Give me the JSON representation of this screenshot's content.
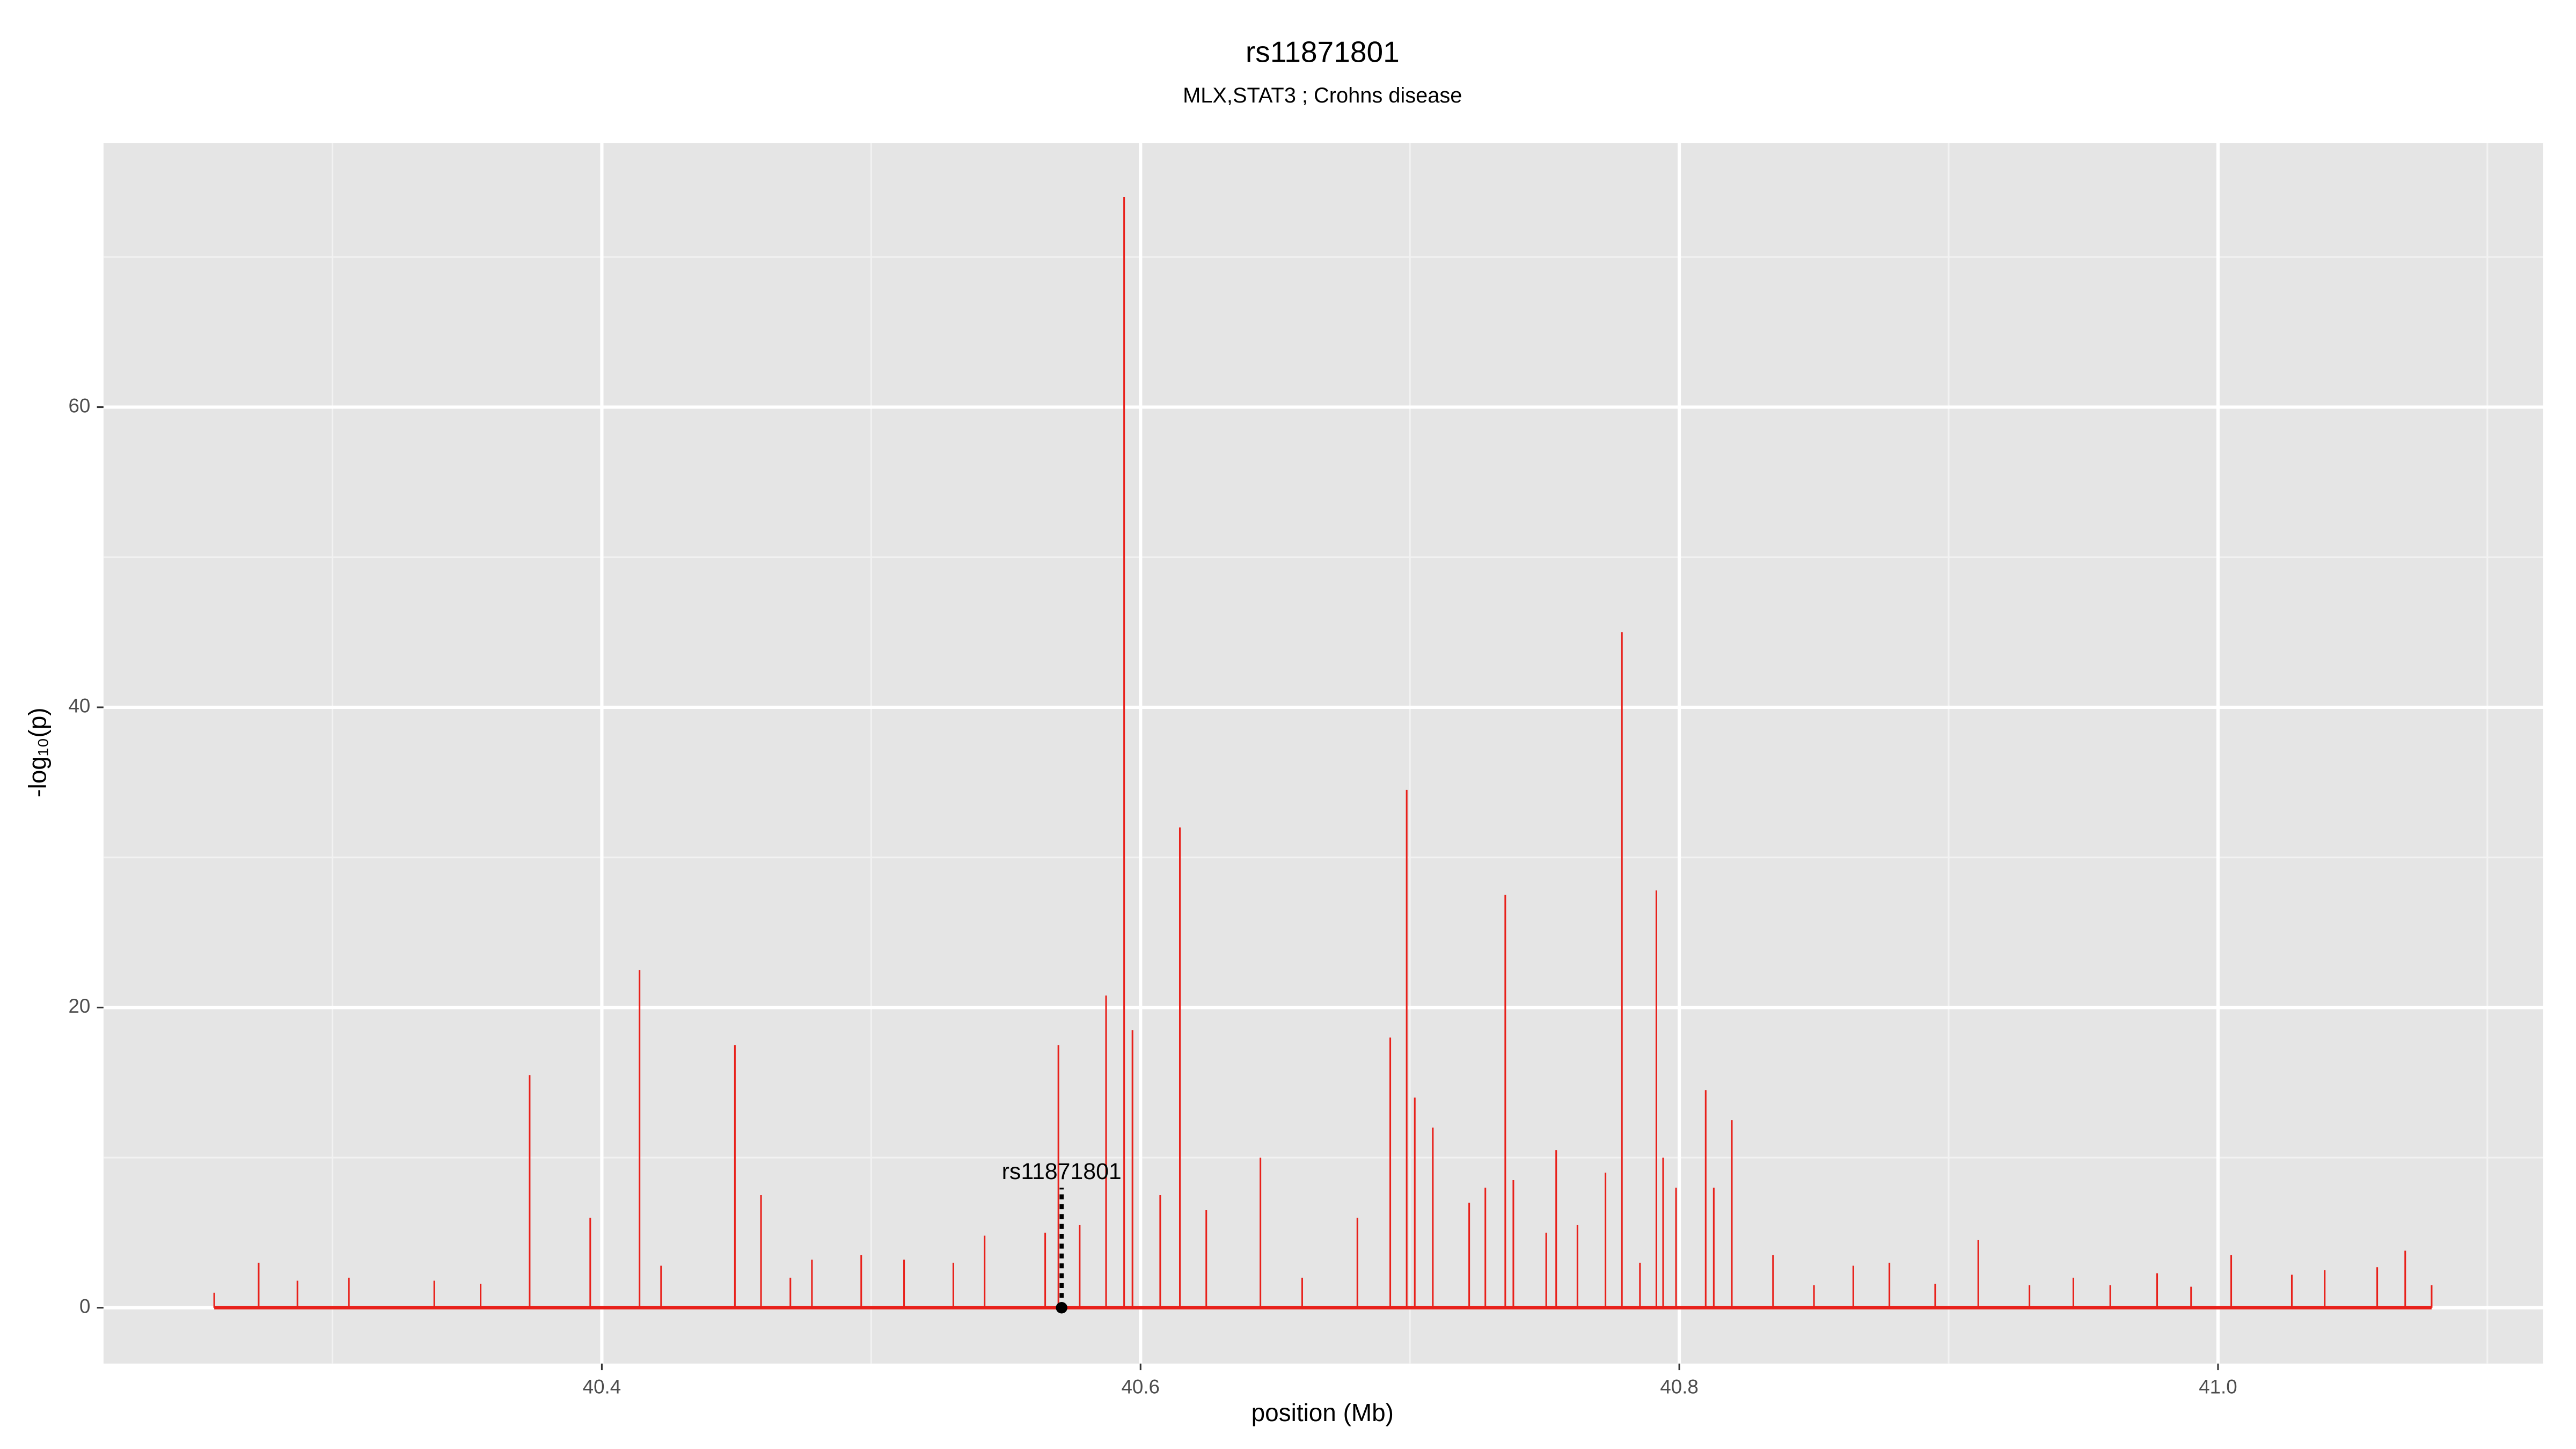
{
  "chart_data": {
    "type": "spike",
    "title": "rs11871801",
    "subtitle": "MLX,STAT3 ; Crohns disease",
    "x_label": "position (Mb)",
    "y_label": "-log₁₀(p)",
    "color": "#e8201a",
    "grid": true,
    "xlim": [
      40.215,
      41.1207
    ],
    "ylim": [
      -3.72,
      77.6
    ],
    "xticks": [
      40.4,
      40.6,
      40.8,
      {
        "value": 41,
        "label": "41.0"
      }
    ],
    "yticks": [
      0,
      20,
      40,
      60
    ],
    "x": [
      40.2561,
      40.2726,
      40.287,
      40.3061,
      40.3378,
      40.355,
      40.3732,
      40.3957,
      40.414,
      40.422,
      40.4494,
      40.4591,
      40.47,
      40.478,
      40.4963,
      40.5122,
      40.5305,
      40.5421,
      40.5646,
      40.5695,
      40.5774,
      40.5872,
      40.5939,
      40.597,
      40.6073,
      40.6146,
      40.6244,
      40.6445,
      40.66,
      40.6805,
      40.6927,
      40.6988,
      40.7018,
      40.7085,
      40.722,
      40.728,
      40.7354,
      40.7384,
      40.7506,
      40.7543,
      40.7622,
      40.7726,
      40.7787,
      40.7854,
      40.7915,
      40.794,
      40.7988,
      40.8098,
      40.8128,
      40.8195,
      40.8348,
      40.85,
      40.8646,
      40.878,
      40.895,
      40.911,
      40.93,
      40.9463,
      40.96,
      40.9774,
      40.99,
      41.0049,
      41.0274,
      41.0396,
      41.0591,
      41.0695,
      41.0793
    ],
    "values": [
      1,
      3,
      1.8,
      2,
      1.8,
      1.6,
      15.5,
      6,
      22.5,
      2.8,
      17.5,
      7.5,
      2,
      3.2,
      3.5,
      3.2,
      3,
      4.8,
      5,
      17.5,
      5.5,
      20.8,
      74,
      18.5,
      7.5,
      32,
      6.5,
      10,
      2,
      6,
      18,
      34.5,
      14,
      12,
      7,
      8,
      27.5,
      8.5,
      5,
      10.5,
      5.5,
      9,
      45,
      3,
      27.8,
      10,
      8,
      14.5,
      8,
      12.5,
      3.5,
      1.5,
      2.8,
      3,
      1.6,
      4.5,
      1.5,
      2,
      1.5,
      2.3,
      1.4,
      3.5,
      2.2,
      2.5,
      2.7,
      3.8,
      1.5
    ],
    "annotation": {
      "label": "rs11871801",
      "x": 40.5707,
      "value": 8
    }
  }
}
